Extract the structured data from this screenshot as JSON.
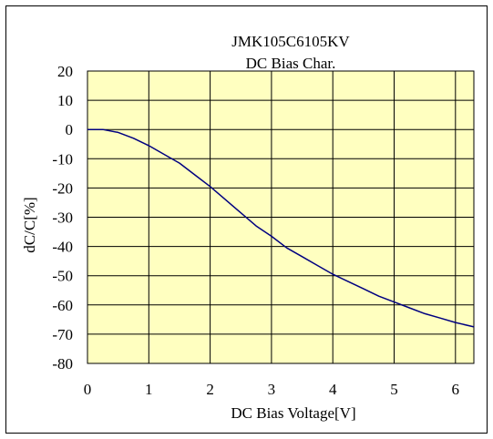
{
  "chart_data": {
    "type": "line",
    "title": "JMK105C6105KV",
    "subtitle": "DC Bias Char.",
    "xlabel": "DC Bias Voltage[V]",
    "ylabel": "dC/C[%]",
    "xlim": [
      0,
      6.3
    ],
    "ylim": [
      -80,
      20
    ],
    "xticks": [
      "0",
      "1",
      "2",
      "3",
      "4",
      "5",
      "6"
    ],
    "yticks": [
      "20",
      "10",
      "0",
      "-10",
      "-20",
      "-30",
      "-40",
      "-50",
      "-60",
      "-70",
      "-80"
    ],
    "grid": true,
    "legend": "none",
    "colors": {
      "plot_bg": "#ffffc0",
      "line": "#000080",
      "grid": "#000000"
    },
    "series": [
      {
        "x": [
          0,
          0.25,
          0.5,
          0.75,
          1.0,
          1.25,
          1.5,
          1.75,
          2.0,
          2.25,
          2.5,
          2.75,
          3.0,
          3.25,
          3.5,
          3.75,
          4.0,
          4.25,
          4.5,
          4.75,
          5.0,
          5.25,
          5.5,
          5.75,
          6.0,
          6.3
        ],
        "y": [
          0,
          0,
          -1,
          -3,
          -5.5,
          -8.5,
          -11.5,
          -15.5,
          -19.5,
          -24,
          -28.5,
          -33,
          -36.5,
          -40.5,
          -43.5,
          -46.5,
          -49.5,
          -52,
          -54.5,
          -57,
          -59,
          -61,
          -63,
          -64.5,
          -66,
          -67.5
        ]
      }
    ]
  }
}
